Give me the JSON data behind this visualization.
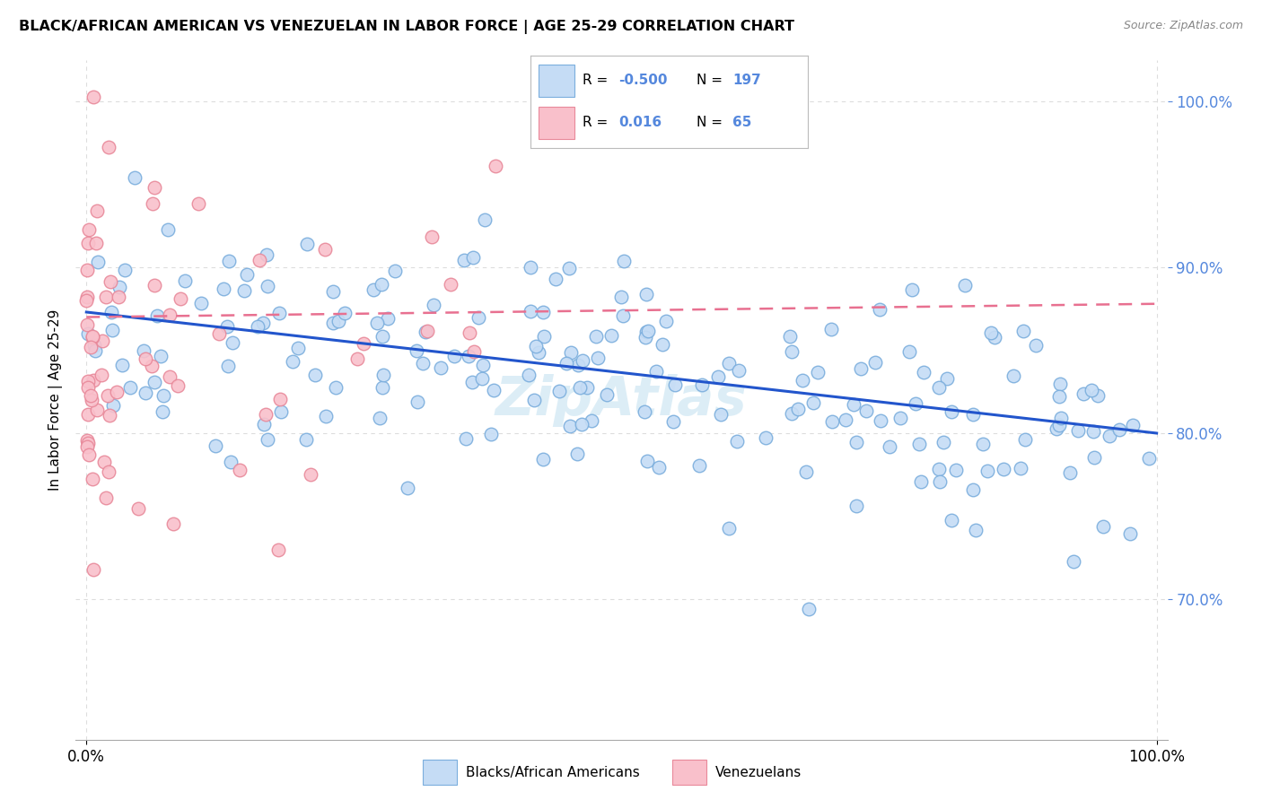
{
  "title": "BLACK/AFRICAN AMERICAN VS VENEZUELAN IN LABOR FORCE | AGE 25-29 CORRELATION CHART",
  "source": "Source: ZipAtlas.com",
  "ylabel": "In Labor Force | Age 25-29",
  "ytick_labels": [
    "70.0%",
    "80.0%",
    "90.0%",
    "100.0%"
  ],
  "ytick_values": [
    0.7,
    0.8,
    0.9,
    1.0
  ],
  "xlim": [
    -0.01,
    1.01
  ],
  "ylim": [
    0.615,
    1.025
  ],
  "blue_fill": "#C5DCF5",
  "blue_edge": "#7BAEDD",
  "pink_fill": "#F9C0CB",
  "pink_edge": "#E8899A",
  "blue_line_color": "#2255CC",
  "pink_line_color": "#E87090",
  "legend_R_blue": "-0.500",
  "legend_N_blue": "197",
  "legend_R_pink": "0.016",
  "legend_N_pink": "65",
  "watermark": "ZipAtlas",
  "grid_color": "#DDDDDD",
  "ytick_color": "#5588DD",
  "blue_line_start_y": 0.873,
  "blue_line_end_y": 0.8,
  "pink_line_start_y": 0.87,
  "pink_line_end_y": 0.878
}
